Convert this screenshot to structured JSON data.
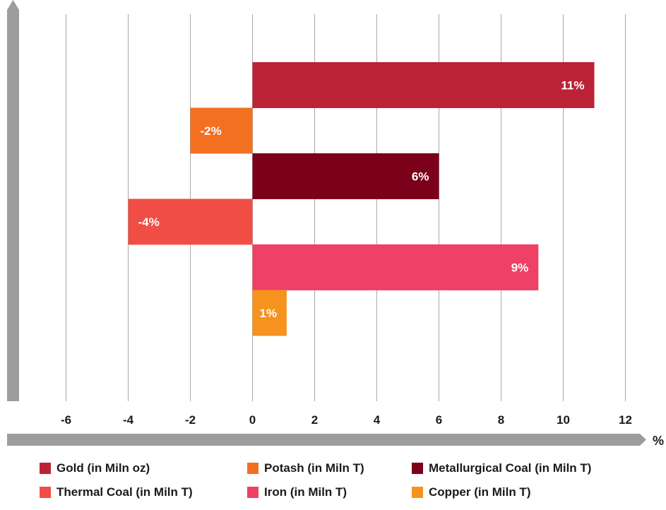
{
  "chart_data": {
    "type": "bar",
    "orientation": "horizontal",
    "categories": [
      "Gold (in Miln oz)",
      "Potash (in Miln T)",
      "Metallurgical Coal (in Miln T)",
      "Thermal Coal (in Miln T)",
      "Iron (in Miln T)",
      "Copper (in Miln T)"
    ],
    "values": [
      11,
      -2,
      6,
      -4,
      9.2,
      1.1
    ],
    "data_labels": [
      "11%",
      "-2%",
      "6%",
      "-4%",
      "9%",
      "1%"
    ],
    "colors": [
      "#bc2235",
      "#f37021",
      "#7b0019",
      "#f04e44",
      "#ef4066",
      "#f6921e"
    ],
    "xlim": [
      -7.5,
      12
    ],
    "xticks": [
      -6,
      -4,
      -2,
      0,
      2,
      4,
      6,
      8,
      10,
      12
    ],
    "xtick_labels": [
      "-6",
      "-4",
      "-2",
      "0",
      "2",
      "4",
      "6",
      "8",
      "10",
      "12"
    ],
    "x_unit": "%",
    "grid": "vertical",
    "legend_position": "bottom"
  },
  "legend": {
    "items": [
      {
        "label": "Gold (in Miln oz)",
        "color": "#bc2235"
      },
      {
        "label": "Potash (in Miln T)",
        "color": "#f37021"
      },
      {
        "label": "Metallurgical Coal (in Miln T)",
        "color": "#7b0019"
      },
      {
        "label": "Thermal Coal (in Miln T)",
        "color": "#f04e44"
      },
      {
        "label": "Iron (in Miln T)",
        "color": "#ef4066"
      },
      {
        "label": "Copper (in Miln T)",
        "color": "#f6921e"
      }
    ]
  },
  "axis_color": "#9d9d9e",
  "grid_color": "#a8a8a8"
}
